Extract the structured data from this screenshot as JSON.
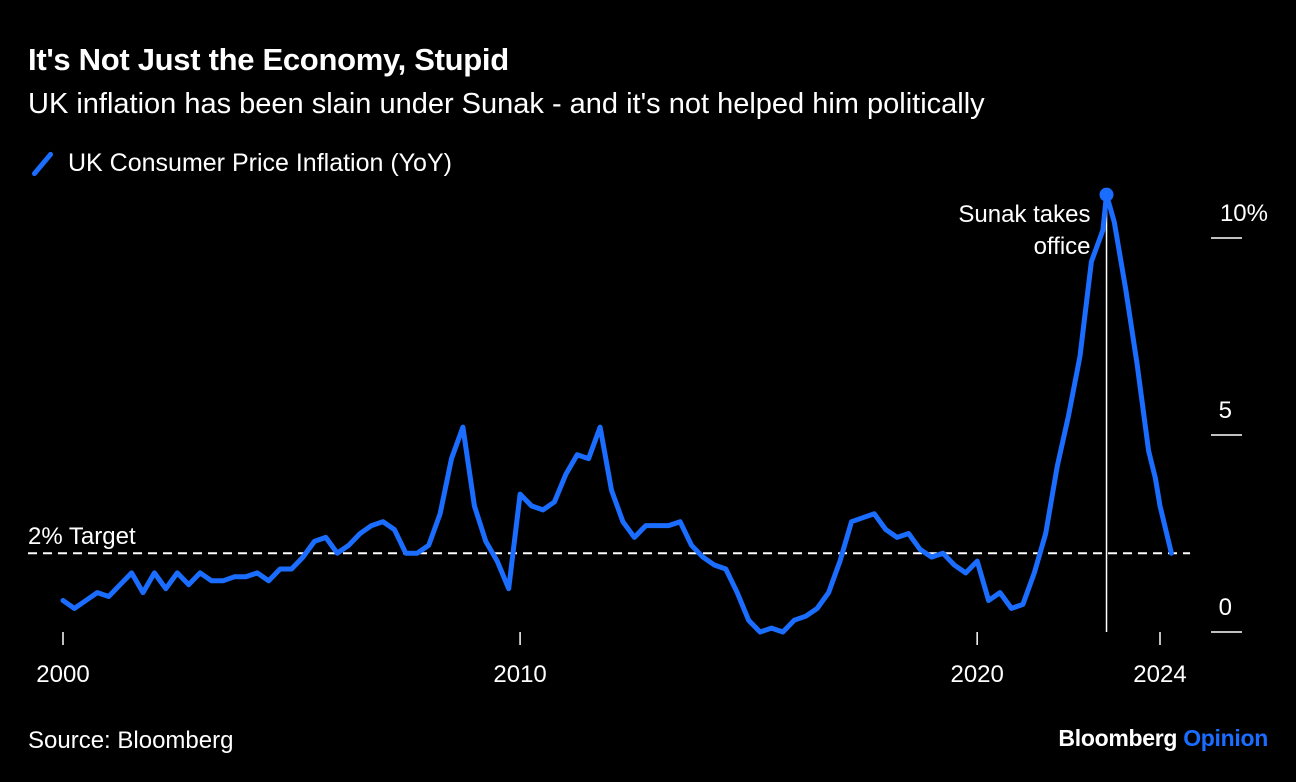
{
  "title": "It's Not Just the Economy, Stupid",
  "subtitle": "UK inflation has been slain under Sunak - and it's not helped him politically",
  "legend_label": "UK Consumer Price Inflation (YoY)",
  "source": "Source: Bloomberg",
  "brand": {
    "name": "Bloomberg",
    "suffix": "Opinion"
  },
  "colors": {
    "line": "#1a6dff",
    "background": "#000000",
    "text": "#ffffff"
  },
  "chart_data": {
    "type": "line",
    "series": [
      {
        "name": "UK Consumer Price Inflation (YoY)",
        "points": [
          [
            2000.0,
            0.8
          ],
          [
            2000.25,
            0.6
          ],
          [
            2000.5,
            0.8
          ],
          [
            2000.75,
            1.0
          ],
          [
            2001.0,
            0.9
          ],
          [
            2001.25,
            1.2
          ],
          [
            2001.5,
            1.5
          ],
          [
            2001.75,
            1.0
          ],
          [
            2002.0,
            1.5
          ],
          [
            2002.25,
            1.1
          ],
          [
            2002.5,
            1.5
          ],
          [
            2002.75,
            1.2
          ],
          [
            2003.0,
            1.5
          ],
          [
            2003.25,
            1.3
          ],
          [
            2003.5,
            1.3
          ],
          [
            2003.75,
            1.4
          ],
          [
            2004.0,
            1.4
          ],
          [
            2004.25,
            1.5
          ],
          [
            2004.5,
            1.3
          ],
          [
            2004.75,
            1.6
          ],
          [
            2005.0,
            1.6
          ],
          [
            2005.25,
            1.9
          ],
          [
            2005.5,
            2.3
          ],
          [
            2005.75,
            2.4
          ],
          [
            2006.0,
            2.0
          ],
          [
            2006.25,
            2.2
          ],
          [
            2006.5,
            2.5
          ],
          [
            2006.75,
            2.7
          ],
          [
            2007.0,
            2.8
          ],
          [
            2007.25,
            2.6
          ],
          [
            2007.5,
            2.0
          ],
          [
            2007.75,
            2.0
          ],
          [
            2008.0,
            2.2
          ],
          [
            2008.25,
            3.0
          ],
          [
            2008.5,
            4.4
          ],
          [
            2008.75,
            5.2
          ],
          [
            2009.0,
            3.2
          ],
          [
            2009.25,
            2.3
          ],
          [
            2009.5,
            1.8
          ],
          [
            2009.75,
            1.1
          ],
          [
            2010.0,
            3.5
          ],
          [
            2010.25,
            3.2
          ],
          [
            2010.5,
            3.1
          ],
          [
            2010.75,
            3.3
          ],
          [
            2011.0,
            4.0
          ],
          [
            2011.25,
            4.5
          ],
          [
            2011.5,
            4.4
          ],
          [
            2011.75,
            5.2
          ],
          [
            2012.0,
            3.6
          ],
          [
            2012.25,
            2.8
          ],
          [
            2012.5,
            2.4
          ],
          [
            2012.75,
            2.7
          ],
          [
            2013.0,
            2.7
          ],
          [
            2013.25,
            2.7
          ],
          [
            2013.5,
            2.8
          ],
          [
            2013.75,
            2.2
          ],
          [
            2014.0,
            1.9
          ],
          [
            2014.25,
            1.7
          ],
          [
            2014.5,
            1.6
          ],
          [
            2014.75,
            1.0
          ],
          [
            2015.0,
            0.3
          ],
          [
            2015.25,
            0.0
          ],
          [
            2015.5,
            0.1
          ],
          [
            2015.75,
            0.0
          ],
          [
            2016.0,
            0.3
          ],
          [
            2016.25,
            0.4
          ],
          [
            2016.5,
            0.6
          ],
          [
            2016.75,
            1.0
          ],
          [
            2017.0,
            1.8
          ],
          [
            2017.25,
            2.8
          ],
          [
            2017.5,
            2.9
          ],
          [
            2017.75,
            3.0
          ],
          [
            2018.0,
            2.6
          ],
          [
            2018.25,
            2.4
          ],
          [
            2018.5,
            2.5
          ],
          [
            2018.75,
            2.1
          ],
          [
            2019.0,
            1.9
          ],
          [
            2019.25,
            2.0
          ],
          [
            2019.5,
            1.7
          ],
          [
            2019.75,
            1.5
          ],
          [
            2020.0,
            1.8
          ],
          [
            2020.25,
            0.8
          ],
          [
            2020.5,
            1.0
          ],
          [
            2020.75,
            0.6
          ],
          [
            2021.0,
            0.7
          ],
          [
            2021.25,
            1.5
          ],
          [
            2021.5,
            2.5
          ],
          [
            2021.75,
            4.2
          ],
          [
            2022.0,
            5.5
          ],
          [
            2022.25,
            7.0
          ],
          [
            2022.5,
            9.4
          ],
          [
            2022.75,
            10.2
          ],
          [
            2022.83,
            11.1
          ],
          [
            2023.0,
            10.4
          ],
          [
            2023.25,
            8.7
          ],
          [
            2023.5,
            6.8
          ],
          [
            2023.75,
            4.6
          ],
          [
            2023.9,
            3.9
          ],
          [
            2024.0,
            3.2
          ],
          [
            2024.25,
            2.0
          ]
        ]
      }
    ],
    "xlim": [
      2000,
      2025
    ],
    "ylim": [
      0,
      11
    ],
    "x_ticks": [
      2000,
      2010,
      2020,
      2024
    ],
    "x_tick_labels": [
      "2000",
      "2010",
      "2020",
      "2024"
    ],
    "y_ticks": [
      0,
      5,
      10
    ],
    "y_tick_labels": [
      "0",
      "5",
      "10%"
    ],
    "reference_line": {
      "y": 2,
      "label": "2% Target",
      "style": "dashed"
    },
    "annotation": {
      "x": 2022.83,
      "y": 11.1,
      "text_line1": "Sunak takes",
      "text_line2": "office"
    },
    "grid": false,
    "legend_position": "top-left"
  }
}
